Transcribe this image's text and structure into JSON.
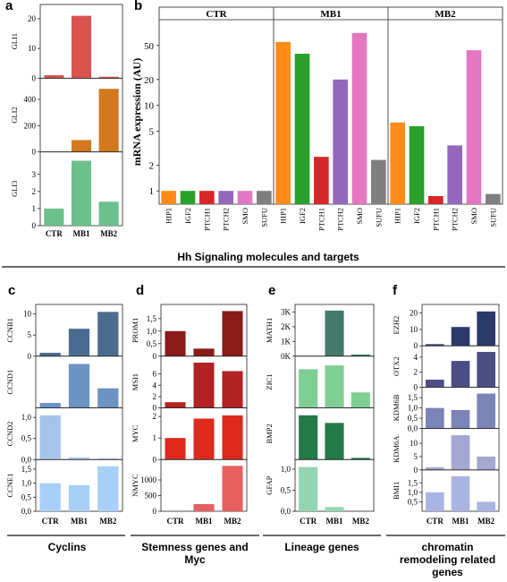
{
  "panels": [
    {
      "letter": "a",
      "caption": ""
    },
    {
      "letter": "b",
      "caption": "Hh Signaling molecules and targets"
    },
    {
      "letter": "c",
      "caption": "Cyclins"
    },
    {
      "letter": "d",
      "caption": "Stemness genes and Myc"
    },
    {
      "letter": "e",
      "caption": "Lineage genes"
    },
    {
      "letter": "f",
      "caption": "chromatin remodeling related genes"
    }
  ],
  "colors": {
    "GLI1": "#d9534f",
    "GLI2": "#d2781f",
    "GLI3": "#6cc08b",
    "CCNB1": "#4a6c8f",
    "CCND1": "#6d93c2",
    "CCND2": "#a6c3ea",
    "CCNE1": "#a8cff5",
    "PROM1": "#8b1a1a",
    "MSI1": "#b22222",
    "MYC": "#dd2a1c",
    "NMYC": "#e5605f",
    "MATH1": "#437a6a",
    "ZIC1": "#7fcf94",
    "BMP2": "#217a48",
    "GFAP": "#94d6b4",
    "EZH2": "#2b3a6b",
    "OTX2": "#4b4e85",
    "KDM6B": "#7b84b8",
    "KDM6A": "#a4a7d1",
    "BMI1": "#aab4e3",
    "HIP1": "#ff8c1a",
    "IGF2": "#2aa12a",
    "PTCH1": "#d62728",
    "PTCH2": "#9467bd",
    "SMO": "#e377c2",
    "SUFU": "#7f7f7f"
  },
  "chart_data": [
    {
      "panel": "a",
      "type": "bar",
      "categories": [
        "CTR",
        "MB1",
        "MB2"
      ],
      "series": [
        {
          "name": "GLI1",
          "values": [
            1,
            21,
            0.5
          ],
          "ylim": [
            0,
            23
          ],
          "ticks": [
            "0",
            "10",
            "20"
          ]
        },
        {
          "name": "GLI2",
          "values": [
            1,
            90,
            480
          ],
          "ylim": [
            0,
            520
          ],
          "ticks": [
            "0",
            "200",
            "400"
          ]
        },
        {
          "name": "GLI3",
          "values": [
            1,
            3.8,
            1.4
          ],
          "ylim": [
            0,
            4
          ],
          "ticks": [
            "0",
            "1",
            "2",
            "3"
          ]
        }
      ]
    },
    {
      "panel": "b",
      "type": "bar",
      "ylabel": "mRNA expression (AU)",
      "yscale": "log",
      "ylim": [
        0.7,
        100
      ],
      "yticks": [
        "1",
        "2",
        "5",
        "10",
        "20",
        "50"
      ],
      "groups": [
        "CTR",
        "MB1",
        "MB2"
      ],
      "categories": [
        "HIP1",
        "IGF2",
        "PTCH1",
        "PTCH2",
        "SMO",
        "SUFU"
      ],
      "series": [
        {
          "group": "CTR",
          "values": [
            1,
            1,
            1,
            1,
            1,
            1
          ]
        },
        {
          "group": "MB1",
          "values": [
            55,
            40,
            2.5,
            20,
            70,
            2.3
          ]
        },
        {
          "group": "MB2",
          "values": [
            6.3,
            5.7,
            0.87,
            3.4,
            44,
            0.92
          ]
        }
      ]
    },
    {
      "panel": "c",
      "type": "bar",
      "categories": [
        "CTR",
        "MB1",
        "MB2"
      ],
      "series": [
        {
          "name": "CCNB1",
          "values": [
            0.8,
            6.5,
            10.5
          ],
          "ylim": [
            0,
            11
          ],
          "ticks": [
            "0",
            "5",
            "10"
          ]
        },
        {
          "name": "CCND1",
          "values": [
            1,
            9,
            4
          ],
          "ylim": [
            0,
            9.5
          ],
          "ticks": []
        },
        {
          "name": "CCND2",
          "values": [
            1.05,
            0.05,
            0.03
          ],
          "ylim": [
            0,
            1.1
          ],
          "ticks": [
            "0,0",
            "0,5",
            "1,0"
          ]
        },
        {
          "name": "CCNE1",
          "values": [
            1,
            0.93,
            1.6
          ],
          "ylim": [
            0,
            1.65
          ],
          "ticks": [
            "0,0",
            "0,5",
            "1,0",
            "1,5"
          ]
        }
      ]
    },
    {
      "panel": "d",
      "type": "bar",
      "categories": [
        "CTR",
        "MB1",
        "MB2"
      ],
      "series": [
        {
          "name": "PROM1",
          "values": [
            1,
            0.3,
            1.8
          ],
          "ylim": [
            0,
            1.85
          ],
          "ticks": [
            "0",
            "0,5",
            "1,0",
            "1,5"
          ]
        },
        {
          "name": "MSI1",
          "values": [
            1,
            8,
            6.5
          ],
          "ylim": [
            0,
            8.2
          ],
          "ticks": [
            "0",
            "2",
            "4",
            "6"
          ]
        },
        {
          "name": "MYC",
          "values": [
            1,
            1.9,
            2.05
          ],
          "ylim": [
            0,
            2.15
          ],
          "ticks": [
            "0",
            "1",
            "2"
          ]
        },
        {
          "name": "NMYC",
          "values": [
            1,
            230,
            1450
          ],
          "ylim": [
            0,
            1480
          ],
          "ticks": [
            "0",
            "500",
            "1000"
          ]
        }
      ]
    },
    {
      "panel": "e",
      "type": "bar",
      "categories": [
        "CTR",
        "MB1",
        "MB2"
      ],
      "series": [
        {
          "name": "MATH1",
          "values": [
            1,
            3100,
            110
          ],
          "ylim": [
            0,
            3150
          ],
          "ticks": [
            "0K",
            "1K",
            "2K",
            "3K"
          ]
        },
        {
          "name": "ZIC1",
          "values": [
            1,
            1.1,
            0.4
          ],
          "ylim": [
            0,
            1.2
          ],
          "ticks": []
        },
        {
          "name": "BMP2",
          "values": [
            1.05,
            0.87,
            0.04
          ],
          "ylim": [
            0,
            1.1
          ],
          "ticks": []
        },
        {
          "name": "GFAP",
          "values": [
            1.05,
            0.1,
            0
          ],
          "ylim": [
            0,
            1.1
          ],
          "ticks": [
            "0,0",
            "0,5",
            "1,0"
          ]
        }
      ]
    },
    {
      "panel": "f",
      "type": "bar",
      "categories": [
        "CTR",
        "MB1",
        "MB2"
      ],
      "series": [
        {
          "name": "EZH2",
          "values": [
            1,
            11.5,
            21
          ],
          "ylim": [
            0,
            22
          ],
          "ticks": [
            "0",
            "10",
            "20"
          ]
        },
        {
          "name": "OTX2",
          "values": [
            1,
            3.5,
            4.7
          ],
          "ylim": [
            0,
            4.8
          ],
          "ticks": [
            "0",
            "2",
            "4"
          ]
        },
        {
          "name": "KDM6B",
          "values": [
            1,
            0.9,
            1.7
          ],
          "ylim": [
            0,
            1.75
          ],
          "ticks": [
            "0,0",
            "0,5",
            "1,0",
            "1,5"
          ]
        },
        {
          "name": "KDM6A",
          "values": [
            1,
            13,
            5
          ],
          "ylim": [
            0,
            13.5
          ],
          "ticks": [
            "0",
            "5",
            "10"
          ]
        },
        {
          "name": "BMI1",
          "values": [
            1,
            1.85,
            0.5
          ],
          "ylim": [
            0,
            1.9
          ],
          "ticks": [
            "0,5",
            "1,0",
            "1,5"
          ]
        }
      ]
    }
  ]
}
